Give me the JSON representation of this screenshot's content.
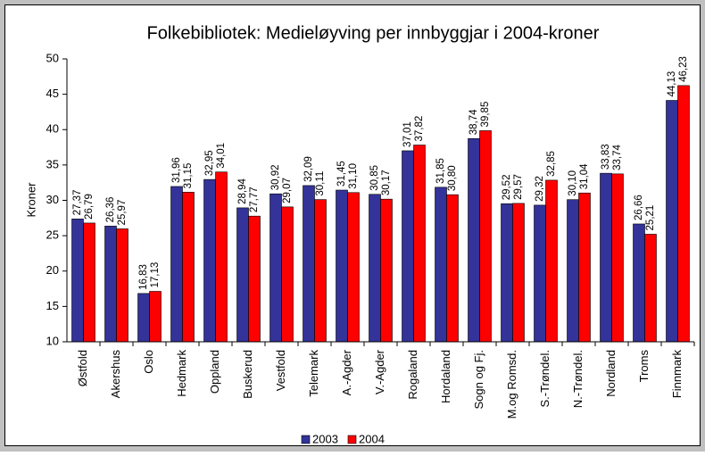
{
  "chart_data": {
    "type": "bar",
    "title": "Folkebibliotek: Medieløyving per innbyggjar i 2004-kroner",
    "ylabel": "Kroner",
    "categories": [
      "Østfold",
      "Akershus",
      "Oslo",
      "Hedmark",
      "Oppland",
      "Buskerud",
      "Vestfold",
      "Telemark",
      "A.-Agder",
      "V.-Agder",
      "Rogaland",
      "Hordaland",
      "Sogn og Fj.",
      "M.og Romsd.",
      "S.-Trøndel.",
      "N.-Trøndel.",
      "Nordland",
      "Troms",
      "Finnmark"
    ],
    "series": [
      {
        "name": "2003",
        "color": "#333399",
        "values": [
          27.37,
          26.36,
          16.83,
          31.96,
          32.95,
          28.94,
          30.92,
          32.09,
          31.45,
          30.85,
          37.01,
          31.85,
          38.74,
          29.52,
          29.32,
          30.1,
          33.83,
          26.66,
          44.13
        ],
        "value_labels": [
          "27,37",
          "26,36",
          "16,83",
          "31,96",
          "32,95",
          "28,94",
          "30,92",
          "32,09",
          "31,45",
          "30,85",
          "37,01",
          "31,85",
          "38,74",
          "29,52",
          "29,32",
          "30,10",
          "33,83",
          "26,66",
          "44,13"
        ]
      },
      {
        "name": "2004",
        "color": "#ff0000",
        "values": [
          26.79,
          25.97,
          17.13,
          31.15,
          34.01,
          27.77,
          29.07,
          30.11,
          31.1,
          30.17,
          37.82,
          30.8,
          39.85,
          29.57,
          32.85,
          31.04,
          33.74,
          25.21,
          46.23
        ],
        "value_labels": [
          "26,79",
          "25,97",
          "17,13",
          "31,15",
          "34,01",
          "27,77",
          "29,07",
          "30,11",
          "31,10",
          "30,17",
          "37,82",
          "30,80",
          "39,85",
          "29,57",
          "32,85",
          "31,04",
          "33,74",
          "25,21",
          "46,23"
        ]
      }
    ],
    "ylim": [
      10,
      50
    ],
    "yticks": [
      10,
      15,
      20,
      25,
      30,
      35,
      40,
      45,
      50
    ],
    "grid": false,
    "legend": "bottom"
  }
}
